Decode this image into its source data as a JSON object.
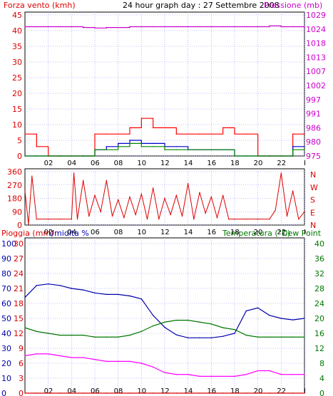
{
  "page": {
    "title": "24 hour graph day : 27 Settembre 2008"
  },
  "colors": {
    "wind_axis": "#dd0000",
    "pressure_axis": "#cc00cc",
    "temp_axis": "#007700",
    "humidity_axis": "#0000aa",
    "rain_axis": "#dd0000",
    "grid": "#8888ff",
    "wind_gust": "#ff0000",
    "wind_avg_blue": "#0000cc",
    "wind_avg_green": "#008800",
    "dewpoint": "#ff00ff"
  },
  "x_ticks": [
    "02",
    "04",
    "06",
    "08",
    "10",
    "12",
    "14",
    "16",
    "18",
    "20",
    "22",
    "I"
  ],
  "chart_data": [
    {
      "id": "wind_pressure",
      "type": "line",
      "title": "24 hour graph day : 27 Settembre 2008",
      "ylabel_left": "Forza vento (kmh)",
      "ylabel_right": "Pressione (mb)",
      "yticks_left": [
        "45",
        "40",
        "35",
        "30",
        "25",
        "20",
        "15",
        "10",
        "5",
        "0"
      ],
      "yticks_right": [
        "1029",
        "1024",
        "1018",
        "1013",
        "1007",
        "1002",
        "997",
        "991",
        "986",
        "980",
        "975"
      ],
      "ylim_left": [
        0,
        45
      ],
      "ylim_right": [
        975,
        1029
      ],
      "x_hours": [
        0,
        1,
        2,
        3,
        4,
        5,
        6,
        7,
        8,
        9,
        10,
        11,
        12,
        13,
        14,
        15,
        16,
        17,
        18,
        19,
        20,
        21,
        22,
        23,
        24
      ],
      "series": [
        {
          "axis": "right",
          "color": "#cc00cc",
          "values": [
            1024.5,
            1024.5,
            1024.5,
            1024.5,
            1024.5,
            1024.2,
            1024,
            1024.2,
            1024.2,
            1024.5,
            1024.5,
            1024.5,
            1024.5,
            1024.5,
            1024.5,
            1024.5,
            1024.5,
            1024.5,
            1024.5,
            1024.5,
            1024.5,
            1024.8,
            1024.5,
            1024.5,
            1024.2
          ]
        },
        {
          "axis": "left",
          "color": "#ff0000",
          "values": [
            7,
            3,
            0,
            0,
            0,
            0,
            7,
            7,
            7,
            9,
            12,
            9,
            9,
            7,
            7,
            7,
            7,
            9,
            7,
            7,
            0,
            0,
            0,
            7,
            7
          ]
        },
        {
          "axis": "left",
          "color": "#0000cc",
          "values": [
            0,
            0,
            0,
            0,
            0,
            0,
            2,
            3,
            4,
            5,
            4,
            4,
            3,
            3,
            2,
            2,
            2,
            2,
            0,
            0,
            0,
            0,
            0,
            3,
            3
          ]
        },
        {
          "axis": "left",
          "color": "#008800",
          "values": [
            0,
            0,
            0,
            0,
            0,
            0,
            2,
            2,
            3,
            4,
            3,
            3,
            2,
            2,
            2,
            2,
            2,
            2,
            0,
            0,
            0,
            0,
            0,
            2,
            2
          ]
        }
      ]
    },
    {
      "id": "wind_direction",
      "type": "line",
      "yticks_left": [
        "360",
        "270",
        "180",
        "90",
        "0"
      ],
      "yticks_right": [
        "N",
        "W",
        "S",
        "E",
        "N"
      ],
      "ylim": [
        0,
        360
      ],
      "x_hours": [
        0,
        0.3,
        0.6,
        1,
        2,
        3,
        4,
        4.2,
        4.5,
        5,
        5.5,
        6,
        6.5,
        7,
        7.5,
        8,
        8.5,
        9,
        9.5,
        10,
        10.5,
        11,
        11.5,
        12,
        12.5,
        13,
        13.5,
        14,
        14.5,
        15,
        15.5,
        16,
        16.5,
        17,
        17.5,
        18,
        19,
        20,
        21,
        21.5,
        22,
        22.5,
        23,
        23.5,
        24
      ],
      "series": [
        {
          "color": "#dd0000",
          "values": [
            230,
            5,
            330,
            40,
            40,
            40,
            40,
            350,
            40,
            300,
            60,
            200,
            90,
            300,
            60,
            170,
            50,
            190,
            70,
            210,
            40,
            250,
            40,
            180,
            70,
            200,
            60,
            280,
            40,
            220,
            80,
            190,
            50,
            200,
            40,
            40,
            40,
            40,
            40,
            100,
            350,
            60,
            230,
            40,
            90
          ]
        }
      ]
    },
    {
      "id": "temp_hum_rain",
      "type": "line",
      "ylabel_left": "Pioggia (mm)",
      "ylabel_left2": "Umidita %",
      "ylabel_right": "Temperatura (°C)",
      "ylabel_right2": "Dew Point",
      "yticks_rain": [
        "30",
        "27",
        "24",
        "21",
        "18",
        "15",
        "12",
        "9",
        "6",
        "3",
        "0"
      ],
      "yticks_hum": [
        "100",
        "90",
        "80",
        "70",
        "60",
        "50",
        "40",
        "30",
        "20",
        "10",
        "0"
      ],
      "yticks_temp": [
        "40",
        "36",
        "32",
        "28",
        "24",
        "20",
        "16",
        "12",
        "8",
        "4",
        "0"
      ],
      "ylim_temp": [
        0,
        40
      ],
      "ylim_hum": [
        0,
        100
      ],
      "x_hours": [
        0,
        1,
        2,
        3,
        4,
        5,
        6,
        7,
        8,
        9,
        10,
        11,
        12,
        13,
        14,
        15,
        16,
        17,
        18,
        19,
        20,
        21,
        22,
        23,
        24
      ],
      "series": [
        {
          "name": "Umidita %",
          "axis": "hum",
          "color": "#0000aa",
          "values": [
            64,
            72,
            73,
            72,
            70,
            69,
            67,
            66,
            66,
            65,
            63,
            52,
            44,
            39,
            37,
            37,
            37,
            38,
            40,
            55,
            57,
            52,
            50,
            49,
            50
          ]
        },
        {
          "name": "Temperatura (°C)",
          "axis": "temp",
          "color": "#007700",
          "values": [
            17.5,
            16.5,
            16,
            15.5,
            15.5,
            15.5,
            15,
            15,
            15,
            15.5,
            16.5,
            18,
            19,
            19.5,
            19.5,
            19,
            18.5,
            17.5,
            17,
            15.5,
            15,
            15,
            15,
            15,
            15
          ]
        },
        {
          "name": "Dew Point",
          "axis": "temp",
          "color": "#ff00ff",
          "values": [
            10,
            10.5,
            10.5,
            10,
            9.5,
            9.5,
            9,
            8.5,
            8.5,
            8.5,
            8,
            7,
            5.5,
            5,
            5,
            4.5,
            4.5,
            4.5,
            4.5,
            5,
            6,
            6,
            5,
            5,
            5
          ]
        },
        {
          "name": "Pioggia (mm)",
          "axis": "rain",
          "color": "#dd0000",
          "values": [
            0,
            0,
            0,
            0,
            0,
            0,
            0,
            0,
            0,
            0,
            0,
            0,
            0,
            0,
            0,
            0,
            0,
            0,
            0,
            0,
            0,
            0,
            0,
            0,
            0
          ]
        }
      ]
    }
  ]
}
